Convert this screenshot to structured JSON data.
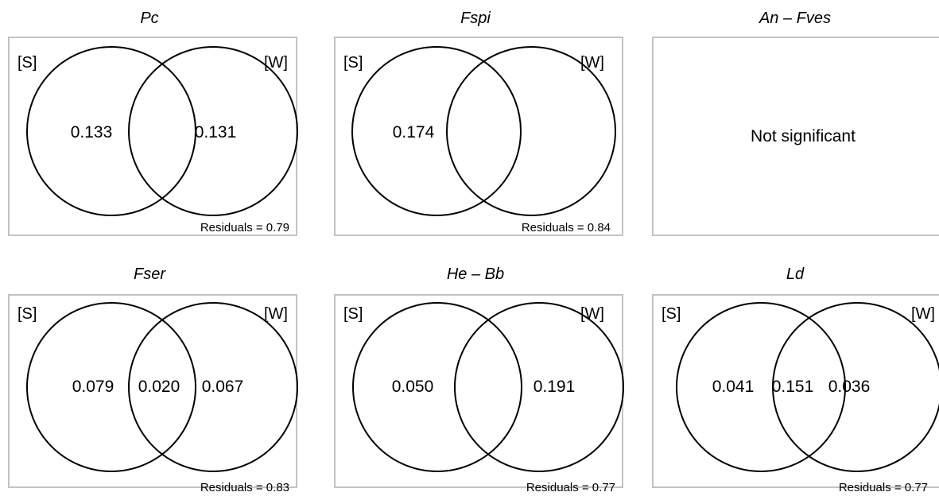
{
  "panels": [
    {
      "title": "Pc",
      "s_label": "[S]",
      "w_label": "[W]",
      "left_only": "0.133",
      "overlap": "",
      "right_only": "0.131",
      "residuals": "Residuals = 0.79",
      "message": ""
    },
    {
      "title": "Fspi",
      "s_label": "[S]",
      "w_label": "[W]",
      "left_only": "0.174",
      "overlap": "",
      "right_only": "",
      "residuals": "Residuals = 0.84",
      "message": ""
    },
    {
      "title": "An – Fves",
      "s_label": "",
      "w_label": "",
      "left_only": "",
      "overlap": "",
      "right_only": "",
      "residuals": "",
      "message": "Not significant"
    },
    {
      "title": "Fser",
      "s_label": "[S]",
      "w_label": "[W]",
      "left_only": "0.079",
      "overlap": "0.020",
      "right_only": "0.067",
      "residuals": "Residuals = 0.83",
      "message": ""
    },
    {
      "title": "He – Bb",
      "s_label": "[S]",
      "w_label": "[W]",
      "left_only": "0.050",
      "overlap": "",
      "right_only": "0.191",
      "residuals": "Residuals = 0.77",
      "message": ""
    },
    {
      "title": "Ld",
      "s_label": "[S]",
      "w_label": "[W]",
      "left_only": "0.041",
      "overlap": "0.151",
      "right_only": "0.036",
      "residuals": "Residuals = 0.77",
      "message": ""
    }
  ]
}
